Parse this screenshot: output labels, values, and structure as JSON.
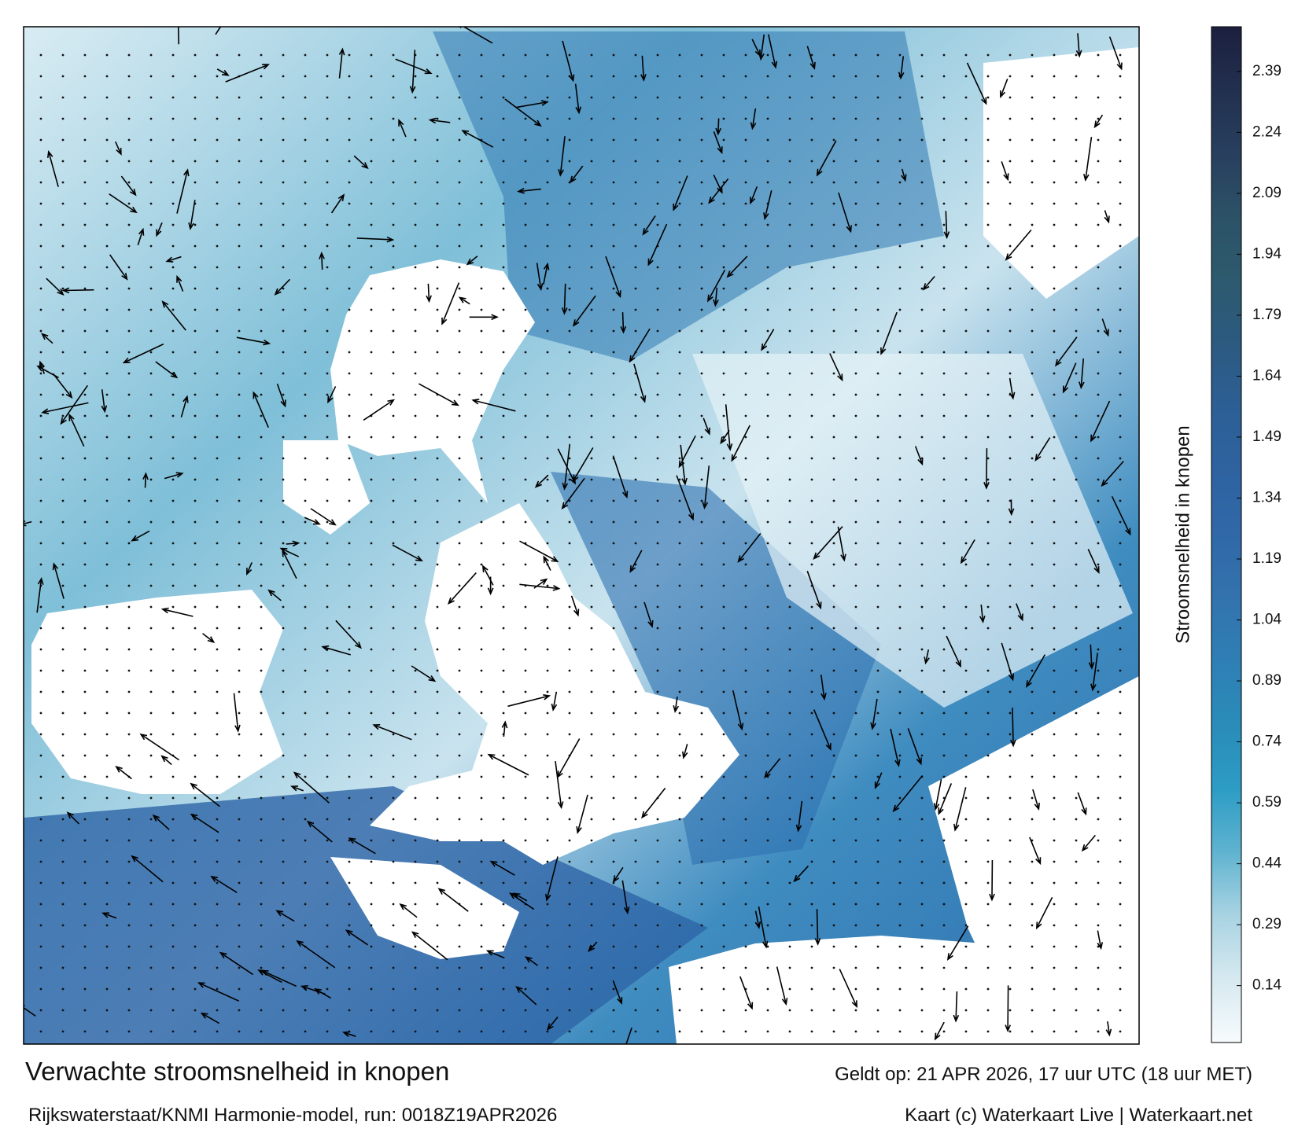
{
  "title": "Verwachte stroomsnelheid in knopen",
  "subtitle": "Rijkswaterstaat/KNMI Harmonie-model, run: 0018Z19APR2026",
  "valid_time": "Geldt op: 21 APR 2026, 17 uur UTC (18 uur MET)",
  "credit": "Kaart (c) Waterkaart Live | Waterkaart.net",
  "colorbar": {
    "label": "Stroomsnelheid in knopen",
    "lim": [
      0,
      2.5
    ],
    "ticks": [
      0.14,
      0.29,
      0.44,
      0.59,
      0.74,
      0.89,
      1.04,
      1.19,
      1.34,
      1.49,
      1.64,
      1.79,
      1.94,
      2.09,
      2.24,
      2.39
    ],
    "colors": [
      "#f7fbfd",
      "#d6e9f0",
      "#a9d3e2",
      "#5fb3d0",
      "#2c9cc4",
      "#2a8cb8",
      "#2e7fb5",
      "#3373ad",
      "#3068a8",
      "#2e63a0",
      "#2c5f95",
      "#2c5a80",
      "#2d5a6e",
      "#2c5266",
      "#283f5e",
      "#22304f",
      "#1c1f3e"
    ]
  }
}
